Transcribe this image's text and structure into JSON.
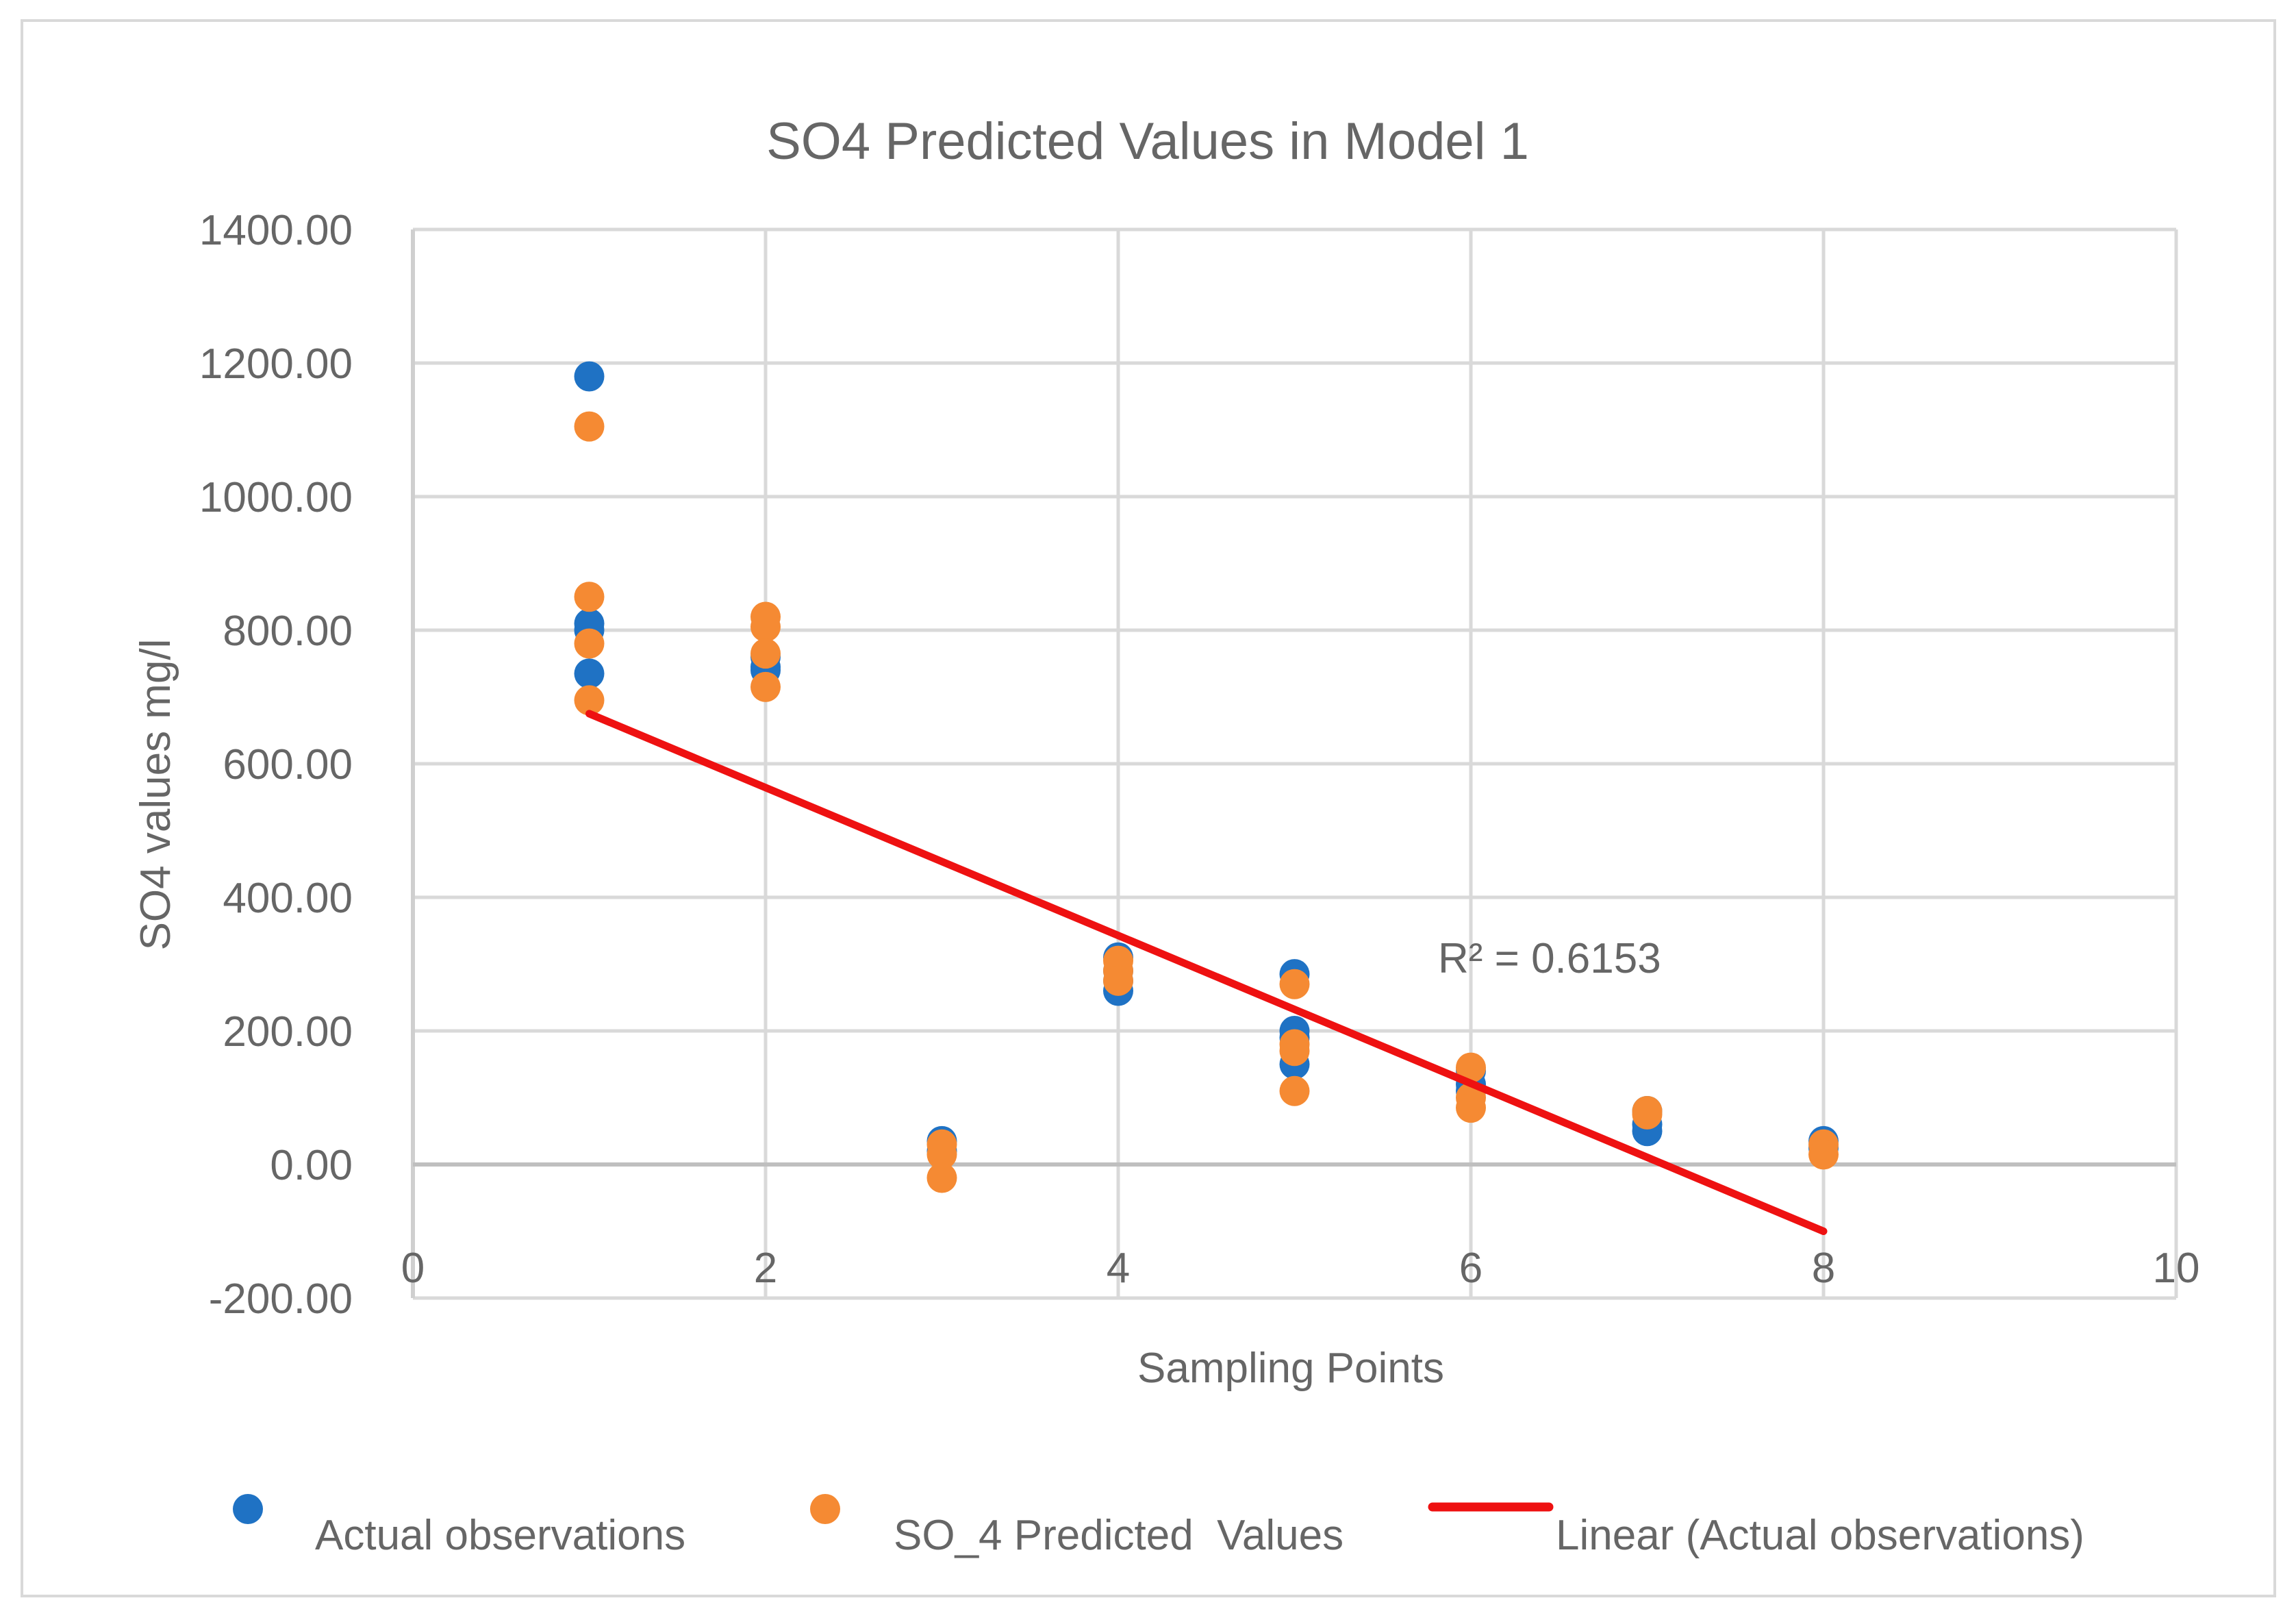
{
  "chart_data": {
    "type": "scatter",
    "title": "SO4 Predicted Values in Model 1",
    "xlabel": "Sampling Points",
    "ylabel": "SO4 values  mg/l",
    "xlim": [
      0,
      10
    ],
    "ylim": [
      -200,
      1400
    ],
    "x_ticks": [
      0,
      2,
      4,
      6,
      8,
      10
    ],
    "x_tick_labels": [
      "0",
      "2",
      "4",
      "6",
      "8",
      "10"
    ],
    "y_ticks": [
      -200,
      0,
      200,
      400,
      600,
      800,
      1000,
      1200,
      1400
    ],
    "y_tick_labels": [
      "-200.00",
      "0.00",
      "200.00",
      "400.00",
      "600.00",
      "800.00",
      "1000.00",
      "1200.00",
      "1400.00"
    ],
    "grid": true,
    "legend_position": "bottom",
    "series": [
      {
        "name": "Actual observations",
        "color": "#1f72c4",
        "points": [
          [
            1,
            1180
          ],
          [
            1,
            810
          ],
          [
            1,
            800
          ],
          [
            1,
            735
          ],
          [
            2,
            760
          ],
          [
            2,
            745
          ],
          [
            2,
            740
          ],
          [
            3,
            35
          ],
          [
            3,
            20
          ],
          [
            4,
            310
          ],
          [
            4,
            290
          ],
          [
            4,
            275
          ],
          [
            4,
            260
          ],
          [
            5,
            285
          ],
          [
            5,
            200
          ],
          [
            5,
            190
          ],
          [
            5,
            150
          ],
          [
            6,
            140
          ],
          [
            6,
            120
          ],
          [
            6,
            110
          ],
          [
            7,
            80
          ],
          [
            7,
            60
          ],
          [
            7,
            50
          ],
          [
            8,
            35
          ],
          [
            8,
            25
          ]
        ]
      },
      {
        "name": "SO_4 Predicted  Values",
        "color": "#f58a33",
        "points": [
          [
            1,
            1105
          ],
          [
            1,
            850
          ],
          [
            1,
            780
          ],
          [
            1,
            695
          ],
          [
            2,
            820
          ],
          [
            2,
            805
          ],
          [
            2,
            765
          ],
          [
            2,
            715
          ],
          [
            3,
            30
          ],
          [
            3,
            15
          ],
          [
            3,
            -20
          ],
          [
            4,
            305
          ],
          [
            4,
            290
          ],
          [
            4,
            275
          ],
          [
            5,
            270
          ],
          [
            5,
            180
          ],
          [
            5,
            170
          ],
          [
            5,
            110
          ],
          [
            6,
            145
          ],
          [
            6,
            100
          ],
          [
            6,
            85
          ],
          [
            7,
            80
          ],
          [
            7,
            75
          ],
          [
            8,
            30
          ],
          [
            8,
            15
          ]
        ]
      }
    ],
    "trendline": {
      "name": "Linear (Actual observations)",
      "color": "#ee1111",
      "x_start": 1,
      "y_start": 675,
      "x_end": 8,
      "y_end": -100
    },
    "annotation": "R² = 0.6153"
  }
}
